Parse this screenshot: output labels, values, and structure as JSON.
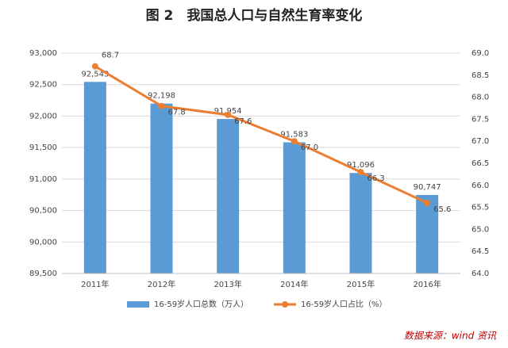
{
  "chart_data": {
    "type": "combo",
    "title": "图 2　我国总人口与自然生育率变化",
    "source": "数据来源：wind 资讯",
    "categories": [
      "2011年",
      "2012年",
      "2013年",
      "2014年",
      "2015年",
      "2016年"
    ],
    "series": [
      {
        "name": "16-59岁人口总数（万人）",
        "color": "#5b9bd5",
        "type": "bar",
        "values": [
          92543,
          92198,
          91954,
          91583,
          91096,
          90747
        ],
        "value_labels": [
          "92,543",
          "92,198",
          "91,954",
          "91,583",
          "91,096",
          "90,747"
        ]
      },
      {
        "name": "16-59岁人口占比（%）",
        "color": "#ed7d31",
        "type": "line",
        "axis": "y2",
        "values": [
          68.7,
          67.8,
          67.6,
          67.0,
          66.3,
          65.6
        ],
        "value_labels": [
          "68.7",
          "67.8",
          "67.6",
          "67.0",
          "66.3",
          "65.6"
        ]
      }
    ],
    "ylim": [
      89500,
      93000
    ],
    "yticks": [
      {
        "value": 89500,
        "label": "89,500"
      },
      {
        "value": 90000,
        "label": "90,000"
      },
      {
        "value": 90500,
        "label": "90,500"
      },
      {
        "value": 91000,
        "label": "91,000"
      },
      {
        "value": 91500,
        "label": "91,500"
      },
      {
        "value": 92000,
        "label": "92,000"
      },
      {
        "value": 92500,
        "label": "92,500"
      },
      {
        "value": 93000,
        "label": "93,000"
      }
    ],
    "y2lim": [
      64.0,
      69.0
    ],
    "y2ticks": [
      {
        "value": 64,
        "label": "64.0"
      },
      64.5,
      {
        "value": 65,
        "label": "65.0"
      },
      65.5,
      {
        "value": 66,
        "label": "66.0"
      },
      66.5,
      {
        "value": 67,
        "label": "67.0"
      },
      67.5,
      {
        "value": 68,
        "label": "68.0"
      },
      68.5,
      {
        "value": 69,
        "label": "69.0"
      }
    ],
    "grid": true,
    "legend": "bottom"
  }
}
